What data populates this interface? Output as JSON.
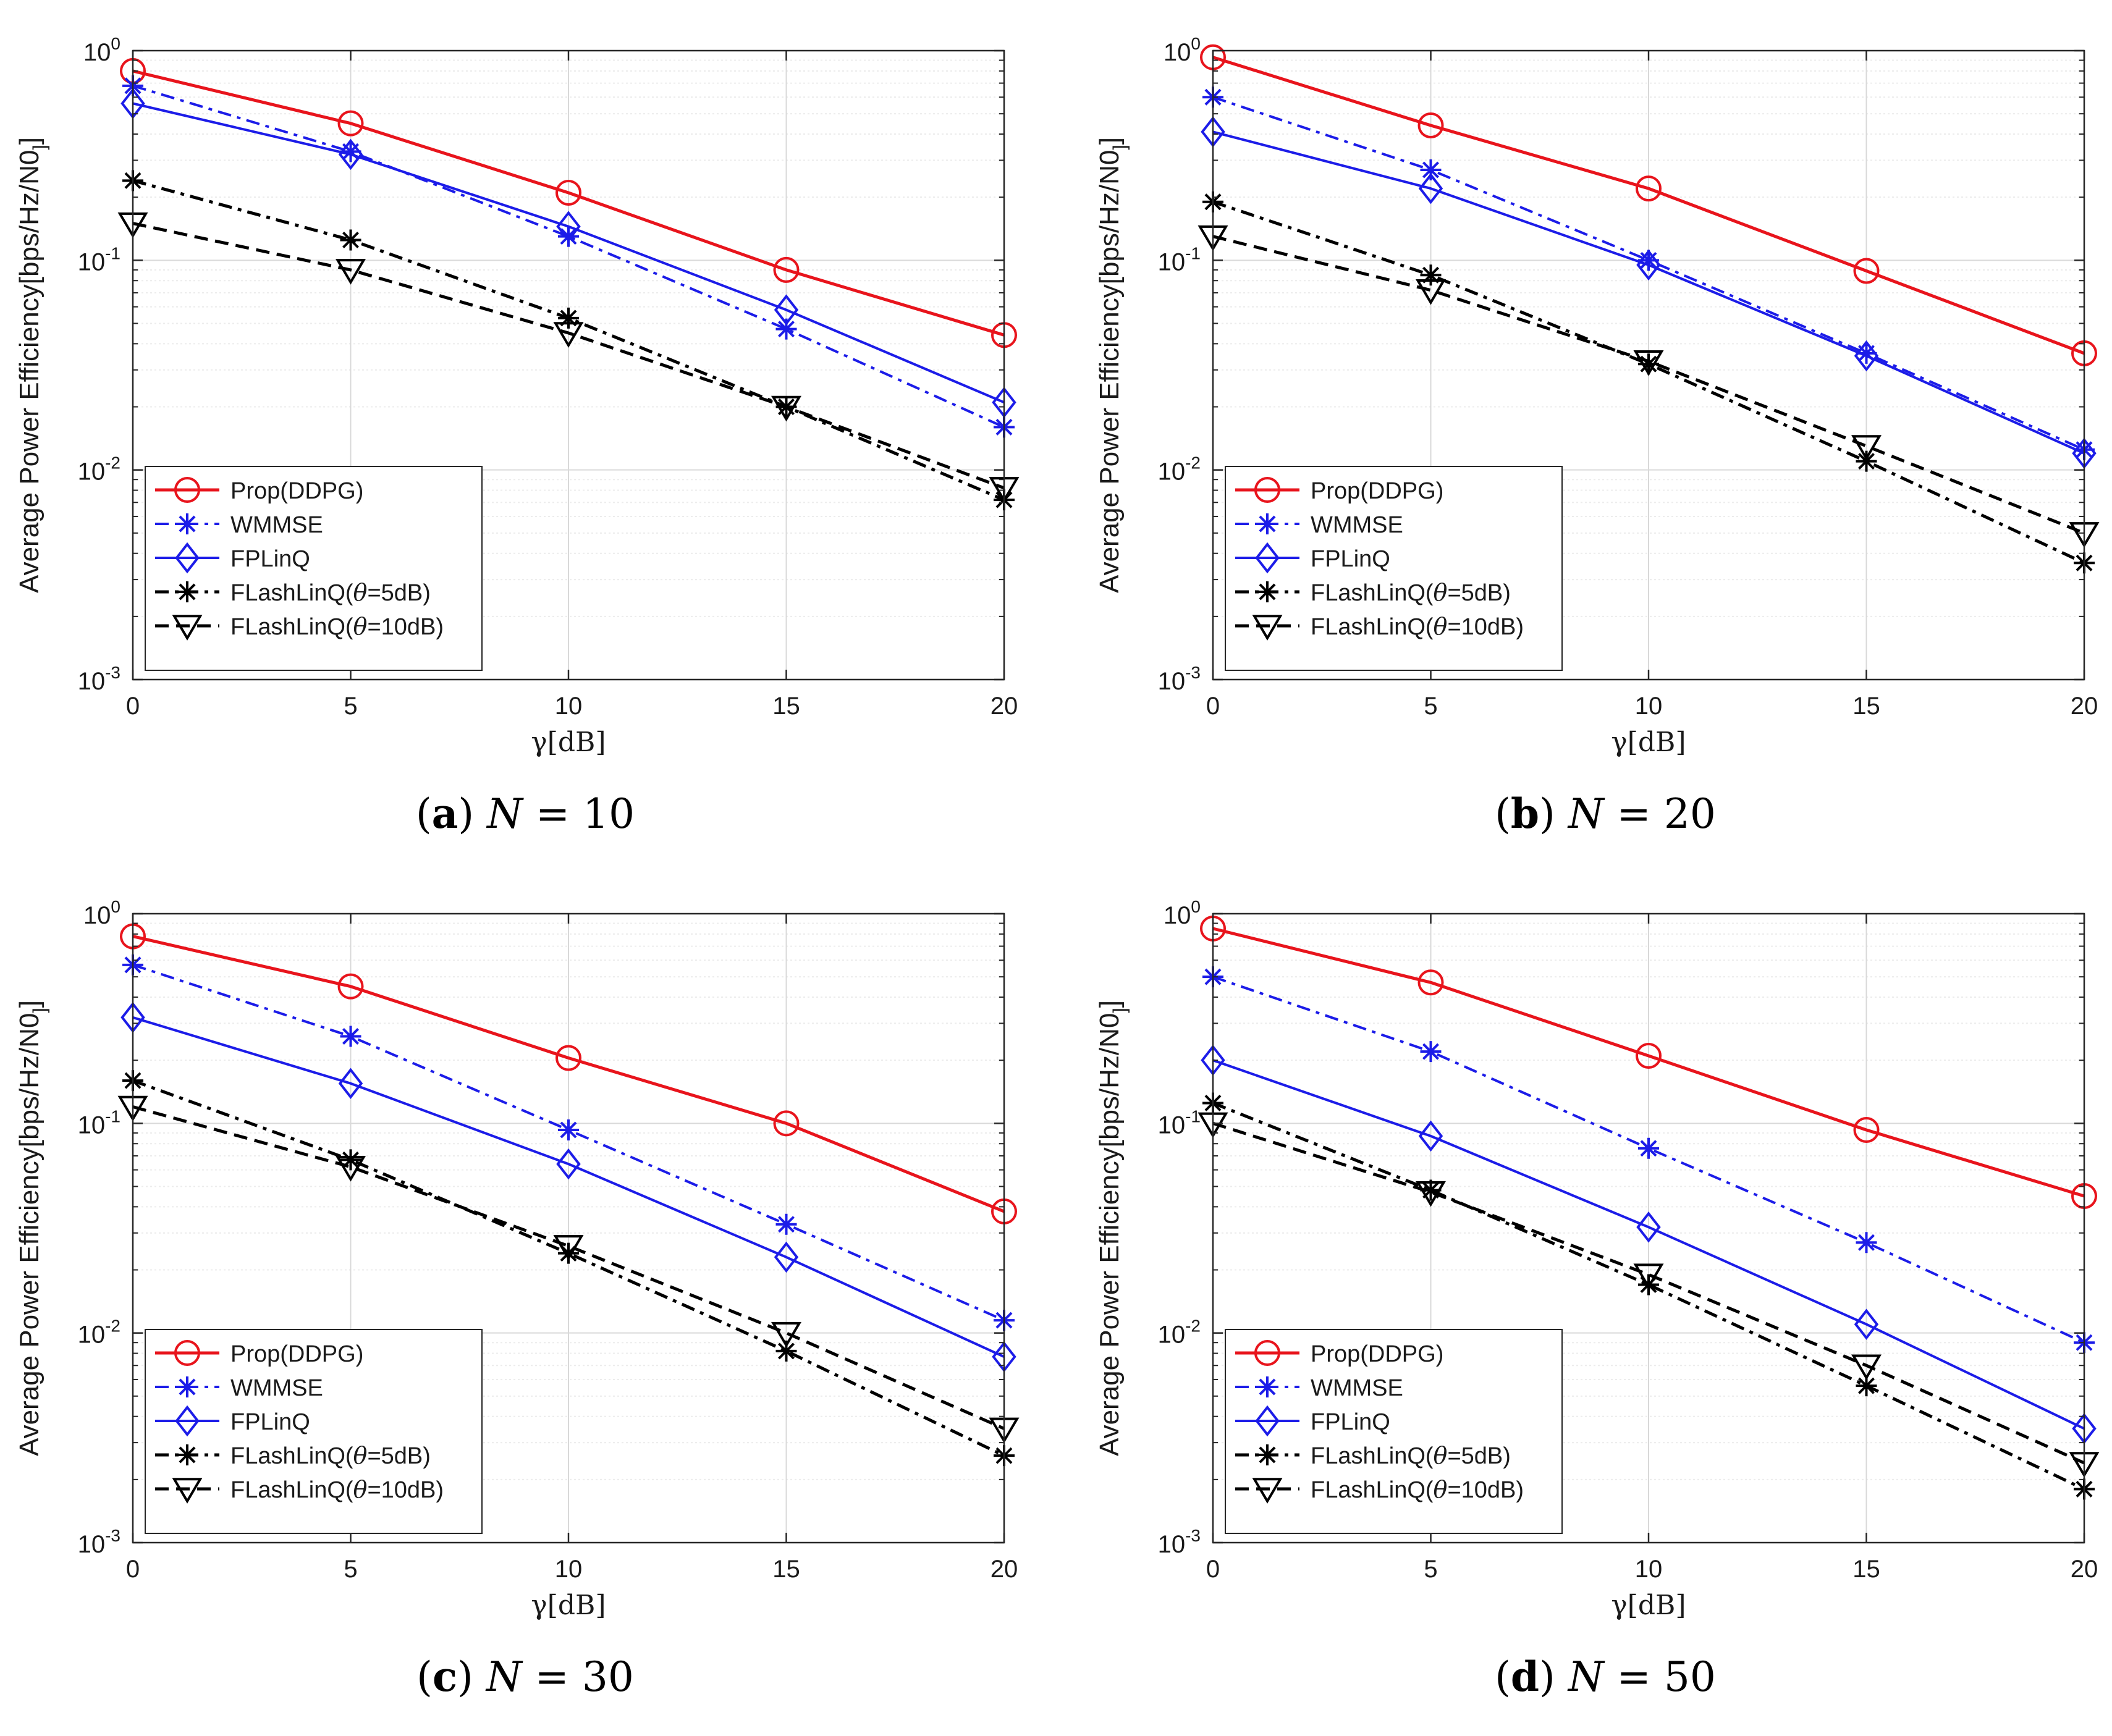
{
  "figure": {
    "colors": {
      "prop": "#e8141c",
      "wmmse": "#1c1ce8",
      "fplinq": "#1c1ce8",
      "flash5": "#000000",
      "flash10": "#000000",
      "grid": "#d9d9d9",
      "axis": "#262626"
    },
    "legend_labels": {
      "prop": "Prop(DDPG)",
      "wmmse": "WMMSE",
      "fplinq": "FPLinQ",
      "flash5": "FLashLinQ(θ=5dB)",
      "flash10": "FLashLinQ(θ=10dB)"
    }
  },
  "chart_data": [
    {
      "type": "line",
      "panel": "a",
      "caption": {
        "letter": "(a)",
        "equation": "N = 10"
      },
      "title": "",
      "xlabel": "γ[dB]",
      "ylabel": "Average Power Efficiency[bps/Hz/N0]",
      "yscale": "log",
      "xlim": [
        0,
        20
      ],
      "ylim": [
        0.001,
        1
      ],
      "x": [
        0,
        5,
        10,
        15,
        20
      ],
      "x_ticks": [
        "0",
        "5",
        "10",
        "15",
        "20"
      ],
      "y_tick_exponents": [
        "0",
        "-1",
        "-2",
        "-3"
      ],
      "legend_position": "bottom-left",
      "grid": true,
      "series": [
        {
          "key": "prop",
          "name": "Prop(DDPG)",
          "values": [
            0.8,
            0.45,
            0.21,
            0.09,
            0.044
          ]
        },
        {
          "key": "wmmse",
          "name": "WMMSE",
          "values": [
            0.68,
            0.33,
            0.13,
            0.047,
            0.016
          ]
        },
        {
          "key": "fplinq",
          "name": "FPLinQ",
          "values": [
            0.56,
            0.32,
            0.145,
            0.058,
            0.021
          ]
        },
        {
          "key": "flash5",
          "name": "FLashLinQ(θ=5dB)",
          "values": [
            0.24,
            0.125,
            0.053,
            0.02,
            0.0072
          ]
        },
        {
          "key": "flash10",
          "name": "FLashLinQ(θ=10dB)",
          "values": [
            0.15,
            0.09,
            0.045,
            0.02,
            0.0082
          ]
        }
      ]
    },
    {
      "type": "line",
      "panel": "b",
      "caption": {
        "letter": "(b)",
        "equation": "N = 20"
      },
      "title": "",
      "xlabel": "γ[dB]",
      "ylabel": "Average Power Efficiency[bps/Hz/N0]",
      "yscale": "log",
      "xlim": [
        0,
        20
      ],
      "ylim": [
        0.001,
        1
      ],
      "x": [
        0,
        5,
        10,
        15,
        20
      ],
      "x_ticks": [
        "0",
        "5",
        "10",
        "15",
        "20"
      ],
      "y_tick_exponents": [
        "0",
        "-1",
        "-2",
        "-3"
      ],
      "legend_position": "bottom-left",
      "grid": true,
      "series": [
        {
          "key": "prop",
          "name": "Prop(DDPG)",
          "values": [
            0.93,
            0.44,
            0.22,
            0.089,
            0.036
          ]
        },
        {
          "key": "wmmse",
          "name": "WMMSE",
          "values": [
            0.6,
            0.27,
            0.1,
            0.036,
            0.0125
          ]
        },
        {
          "key": "fplinq",
          "name": "FPLinQ",
          "values": [
            0.41,
            0.22,
            0.095,
            0.035,
            0.012
          ]
        },
        {
          "key": "flash5",
          "name": "FLashLinQ(θ=5dB)",
          "values": [
            0.19,
            0.085,
            0.032,
            0.011,
            0.0036
          ]
        },
        {
          "key": "flash10",
          "name": "FLashLinQ(θ=10dB)",
          "values": [
            0.13,
            0.072,
            0.033,
            0.013,
            0.005
          ]
        }
      ]
    },
    {
      "type": "line",
      "panel": "c",
      "caption": {
        "letter": "(c)",
        "equation": "N = 30"
      },
      "title": "",
      "xlabel": "γ[dB]",
      "ylabel": "Average Power Efficiency[bps/Hz/N0]",
      "yscale": "log",
      "xlim": [
        0,
        20
      ],
      "ylim": [
        0.001,
        1
      ],
      "x": [
        0,
        5,
        10,
        15,
        20
      ],
      "x_ticks": [
        "0",
        "5",
        "10",
        "15",
        "20"
      ],
      "y_tick_exponents": [
        "0",
        "-1",
        "-2",
        "-3"
      ],
      "legend_position": "bottom-left",
      "grid": true,
      "series": [
        {
          "key": "prop",
          "name": "Prop(DDPG)",
          "values": [
            0.78,
            0.45,
            0.205,
            0.1,
            0.038
          ]
        },
        {
          "key": "wmmse",
          "name": "WMMSE",
          "values": [
            0.57,
            0.26,
            0.093,
            0.033,
            0.0115
          ]
        },
        {
          "key": "fplinq",
          "name": "FPLinQ",
          "values": [
            0.32,
            0.155,
            0.064,
            0.023,
            0.0077
          ]
        },
        {
          "key": "flash5",
          "name": "FLashLinQ(θ=5dB)",
          "values": [
            0.16,
            0.067,
            0.024,
            0.0082,
            0.0026
          ]
        },
        {
          "key": "flash10",
          "name": "FLashLinQ(θ=10dB)",
          "values": [
            0.12,
            0.062,
            0.026,
            0.01,
            0.0035
          ]
        }
      ]
    },
    {
      "type": "line",
      "panel": "d",
      "caption": {
        "letter": "(d)",
        "equation": "N = 50"
      },
      "title": "",
      "xlabel": "γ[dB]",
      "ylabel": "Average Power Efficiency[bps/Hz/N0]",
      "yscale": "log",
      "xlim": [
        0,
        20
      ],
      "ylim": [
        0.001,
        1
      ],
      "x": [
        0,
        5,
        10,
        15,
        20
      ],
      "x_ticks": [
        "0",
        "5",
        "10",
        "15",
        "20"
      ],
      "y_tick_exponents": [
        "0",
        "-1",
        "-2",
        "-3"
      ],
      "legend_position": "bottom-left",
      "grid": true,
      "series": [
        {
          "key": "prop",
          "name": "Prop(DDPG)",
          "values": [
            0.85,
            0.47,
            0.21,
            0.093,
            0.045
          ]
        },
        {
          "key": "wmmse",
          "name": "WMMSE",
          "values": [
            0.5,
            0.22,
            0.076,
            0.027,
            0.009
          ]
        },
        {
          "key": "fplinq",
          "name": "FPLinQ",
          "values": [
            0.2,
            0.087,
            0.032,
            0.011,
            0.0035
          ]
        },
        {
          "key": "flash5",
          "name": "FLashLinQ(θ=5dB)",
          "values": [
            0.125,
            0.048,
            0.017,
            0.0056,
            0.0018
          ]
        },
        {
          "key": "flash10",
          "name": "FLashLinQ(θ=10dB)",
          "values": [
            0.1,
            0.047,
            0.019,
            0.007,
            0.0024
          ]
        }
      ]
    }
  ]
}
